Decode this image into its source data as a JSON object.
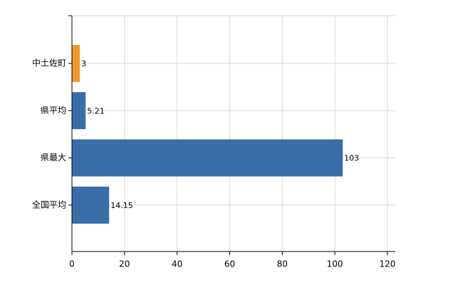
{
  "chart_data": {
    "type": "bar",
    "orientation": "horizontal",
    "categories": [
      "中土佐町",
      "県平均",
      "県最大",
      "全国平均"
    ],
    "values": [
      3,
      5.21,
      103,
      14.15
    ],
    "colors": [
      "#f0982f",
      "#3a6ea8",
      "#3a6ea8",
      "#3a6ea8"
    ],
    "xlim": [
      0,
      123
    ],
    "xticks": [
      0,
      20,
      40,
      60,
      80,
      100,
      120
    ],
    "grid": true
  }
}
